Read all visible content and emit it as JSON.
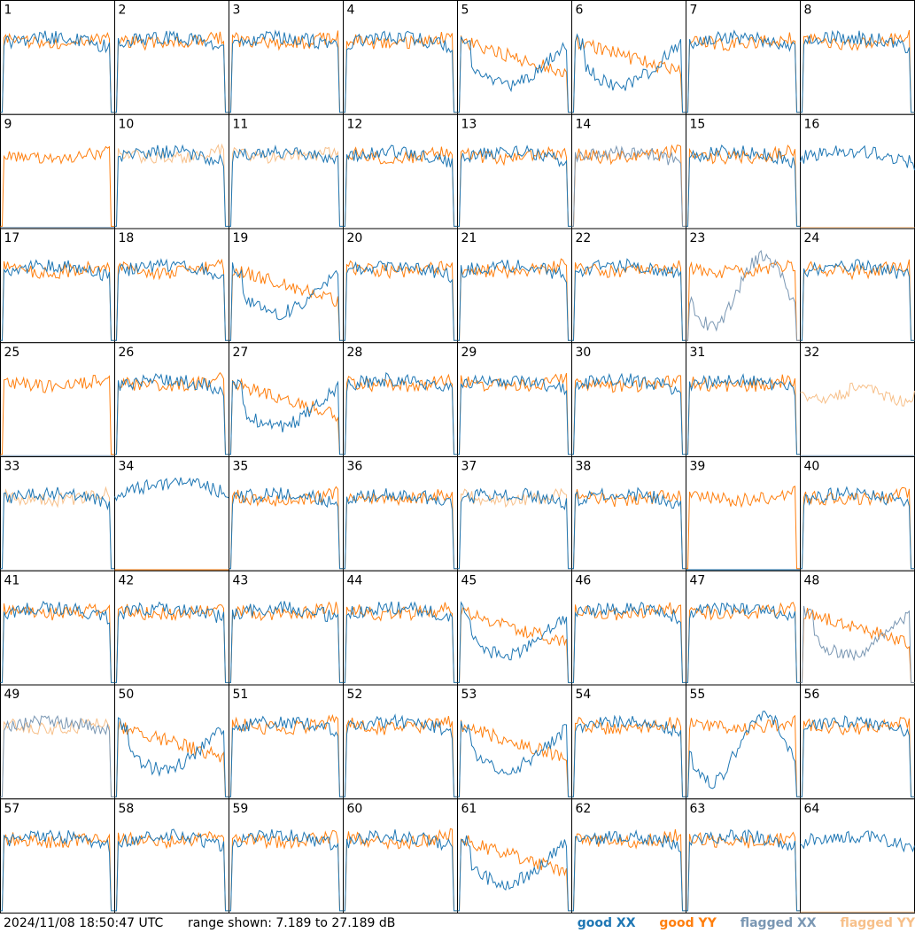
{
  "chart_data": {
    "type": "line",
    "title": "",
    "grid_rows": 8,
    "grid_cols": 8,
    "panels": [
      {
        "label": "1",
        "profile": "A",
        "xx": "good",
        "yy": "good"
      },
      {
        "label": "2",
        "profile": "A",
        "xx": "good",
        "yy": "good"
      },
      {
        "label": "3",
        "profile": "A",
        "xx": "good",
        "yy": "good"
      },
      {
        "label": "4",
        "profile": "A",
        "xx": "good",
        "yy": "good"
      },
      {
        "label": "5",
        "profile": "B",
        "xx": "good",
        "yy": "good"
      },
      {
        "label": "6",
        "profile": "B",
        "xx": "good",
        "yy": "good"
      },
      {
        "label": "7",
        "profile": "A",
        "xx": "good",
        "yy": "good"
      },
      {
        "label": "8",
        "profile": "A",
        "xx": "good",
        "yy": "good"
      },
      {
        "label": "9",
        "profile": "C",
        "xx": "flagged",
        "yy": "good"
      },
      {
        "label": "10",
        "profile": "A",
        "xx": "good",
        "yy": "flagged"
      },
      {
        "label": "11",
        "profile": "A",
        "xx": "good",
        "yy": "flagged"
      },
      {
        "label": "12",
        "profile": "A",
        "xx": "good",
        "yy": "good"
      },
      {
        "label": "13",
        "profile": "A",
        "xx": "good",
        "yy": "good"
      },
      {
        "label": "14",
        "profile": "A",
        "xx": "flagged",
        "yy": "good"
      },
      {
        "label": "15",
        "profile": "A",
        "xx": "good",
        "yy": "good"
      },
      {
        "label": "16",
        "profile": "D",
        "xx": "good",
        "yy": "flagged"
      },
      {
        "label": "17",
        "profile": "A",
        "xx": "good",
        "yy": "good"
      },
      {
        "label": "18",
        "profile": "A",
        "xx": "good",
        "yy": "good"
      },
      {
        "label": "19",
        "profile": "B",
        "xx": "good",
        "yy": "good"
      },
      {
        "label": "20",
        "profile": "A",
        "xx": "good",
        "yy": "good"
      },
      {
        "label": "21",
        "profile": "A",
        "xx": "good",
        "yy": "good"
      },
      {
        "label": "22",
        "profile": "A",
        "xx": "good",
        "yy": "good"
      },
      {
        "label": "23",
        "profile": "E",
        "xx": "flagged",
        "yy": "good"
      },
      {
        "label": "24",
        "profile": "A",
        "xx": "good",
        "yy": "good"
      },
      {
        "label": "25",
        "profile": "C",
        "xx": "flagged",
        "yy": "good"
      },
      {
        "label": "26",
        "profile": "A",
        "xx": "good",
        "yy": "good"
      },
      {
        "label": "27",
        "profile": "B",
        "xx": "good",
        "yy": "good"
      },
      {
        "label": "28",
        "profile": "A",
        "xx": "good",
        "yy": "good"
      },
      {
        "label": "29",
        "profile": "A",
        "xx": "good",
        "yy": "good"
      },
      {
        "label": "30",
        "profile": "A",
        "xx": "good",
        "yy": "good"
      },
      {
        "label": "31",
        "profile": "A",
        "xx": "good",
        "yy": "good"
      },
      {
        "label": "32",
        "profile": "F",
        "xx": "flagged",
        "yy": "flagged"
      },
      {
        "label": "33",
        "profile": "A",
        "xx": "good",
        "yy": "flagged"
      },
      {
        "label": "34",
        "profile": "G",
        "xx": "good",
        "yy": "good"
      },
      {
        "label": "35",
        "profile": "A",
        "xx": "good",
        "yy": "good"
      },
      {
        "label": "36",
        "profile": "A",
        "xx": "good",
        "yy": "good"
      },
      {
        "label": "37",
        "profile": "A",
        "xx": "good",
        "yy": "flagged"
      },
      {
        "label": "38",
        "profile": "A",
        "xx": "good",
        "yy": "good"
      },
      {
        "label": "39",
        "profile": "C",
        "xx": "good",
        "yy": "good"
      },
      {
        "label": "40",
        "profile": "A",
        "xx": "good",
        "yy": "good"
      },
      {
        "label": "41",
        "profile": "A",
        "xx": "good",
        "yy": "good"
      },
      {
        "label": "42",
        "profile": "A",
        "xx": "good",
        "yy": "good"
      },
      {
        "label": "43",
        "profile": "A",
        "xx": "good",
        "yy": "good"
      },
      {
        "label": "44",
        "profile": "A",
        "xx": "good",
        "yy": "good"
      },
      {
        "label": "45",
        "profile": "B",
        "xx": "good",
        "yy": "good"
      },
      {
        "label": "46",
        "profile": "A",
        "xx": "good",
        "yy": "good"
      },
      {
        "label": "47",
        "profile": "A",
        "xx": "good",
        "yy": "good"
      },
      {
        "label": "48",
        "profile": "B",
        "xx": "flagged",
        "yy": "good"
      },
      {
        "label": "49",
        "profile": "A",
        "xx": "flagged",
        "yy": "flagged"
      },
      {
        "label": "50",
        "profile": "B",
        "xx": "good",
        "yy": "good"
      },
      {
        "label": "51",
        "profile": "A",
        "xx": "good",
        "yy": "good"
      },
      {
        "label": "52",
        "profile": "A",
        "xx": "good",
        "yy": "good"
      },
      {
        "label": "53",
        "profile": "B",
        "xx": "good",
        "yy": "good"
      },
      {
        "label": "54",
        "profile": "A",
        "xx": "good",
        "yy": "good"
      },
      {
        "label": "55",
        "profile": "E",
        "xx": "good",
        "yy": "good"
      },
      {
        "label": "56",
        "profile": "A",
        "xx": "good",
        "yy": "good"
      },
      {
        "label": "57",
        "profile": "A",
        "xx": "good",
        "yy": "good"
      },
      {
        "label": "58",
        "profile": "A",
        "xx": "good",
        "yy": "good"
      },
      {
        "label": "59",
        "profile": "A",
        "xx": "good",
        "yy": "good"
      },
      {
        "label": "60",
        "profile": "A",
        "xx": "good",
        "yy": "good"
      },
      {
        "label": "61",
        "profile": "B",
        "xx": "good",
        "yy": "good"
      },
      {
        "label": "62",
        "profile": "A",
        "xx": "good",
        "yy": "good"
      },
      {
        "label": "63",
        "profile": "A",
        "xx": "good",
        "yy": "good"
      },
      {
        "label": "64",
        "profile": "D",
        "xx": "good",
        "yy": "flagged"
      }
    ],
    "y_range_db": [
      7.189,
      27.189
    ],
    "series": [
      {
        "name": "good XX",
        "color": "#1f77b4"
      },
      {
        "name": "good YY",
        "color": "#ff7f0e"
      },
      {
        "name": "flagged XX",
        "color": "#7a97b3"
      },
      {
        "name": "flagged YY",
        "color": "#f7c08a"
      }
    ],
    "legend_position": "bottom-right"
  },
  "footer": {
    "timestamp": "2024/11/08 18:50:47 UTC",
    "range_text": "range shown: 7.189 to 27.189 dB"
  }
}
